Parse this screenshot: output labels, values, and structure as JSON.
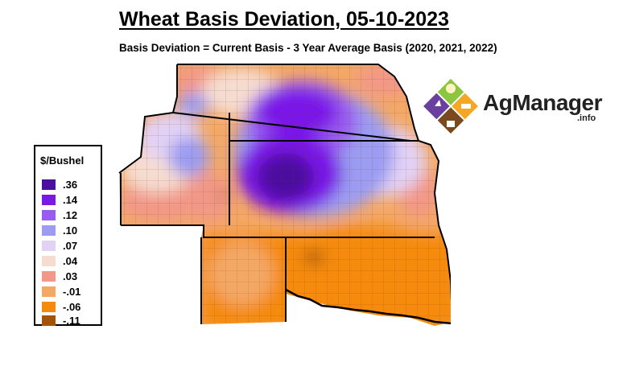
{
  "title": "Wheat Basis Deviation, 05-10-2023",
  "subtitle": "Basis Deviation = Current Basis - 3 Year Average Basis (2020, 2021, 2022)",
  "legend": {
    "title": "$/Bushel",
    "items": [
      {
        "label": ".36",
        "color": "#4b0fa0"
      },
      {
        "label": ".14",
        "color": "#7a18e8"
      },
      {
        "label": ".12",
        "color": "#9a5cf0"
      },
      {
        "label": ".10",
        "color": "#9b9cf2"
      },
      {
        "label": ".07",
        "color": "#e2d2f6"
      },
      {
        "label": ".04",
        "color": "#f6dcd0"
      },
      {
        "label": ".03",
        "color": "#f29888"
      },
      {
        "label": "-.01",
        "color": "#f4a865"
      },
      {
        "label": "-.06",
        "color": "#f58a0c"
      },
      {
        "label": "-.11",
        "color": "#a35408"
      }
    ]
  },
  "logo": {
    "name": "AgManager",
    "suffix": ".info"
  },
  "colors": {
    "orange": "#f58a0c",
    "light_orange": "#f4a865",
    "salmon": "#f29888",
    "peach": "#f6dcd0",
    "lavender": "#e2d2f6",
    "periwinkle": "#9b9cf2",
    "purple": "#7a18e8",
    "deep_purple": "#4b0fa0"
  }
}
